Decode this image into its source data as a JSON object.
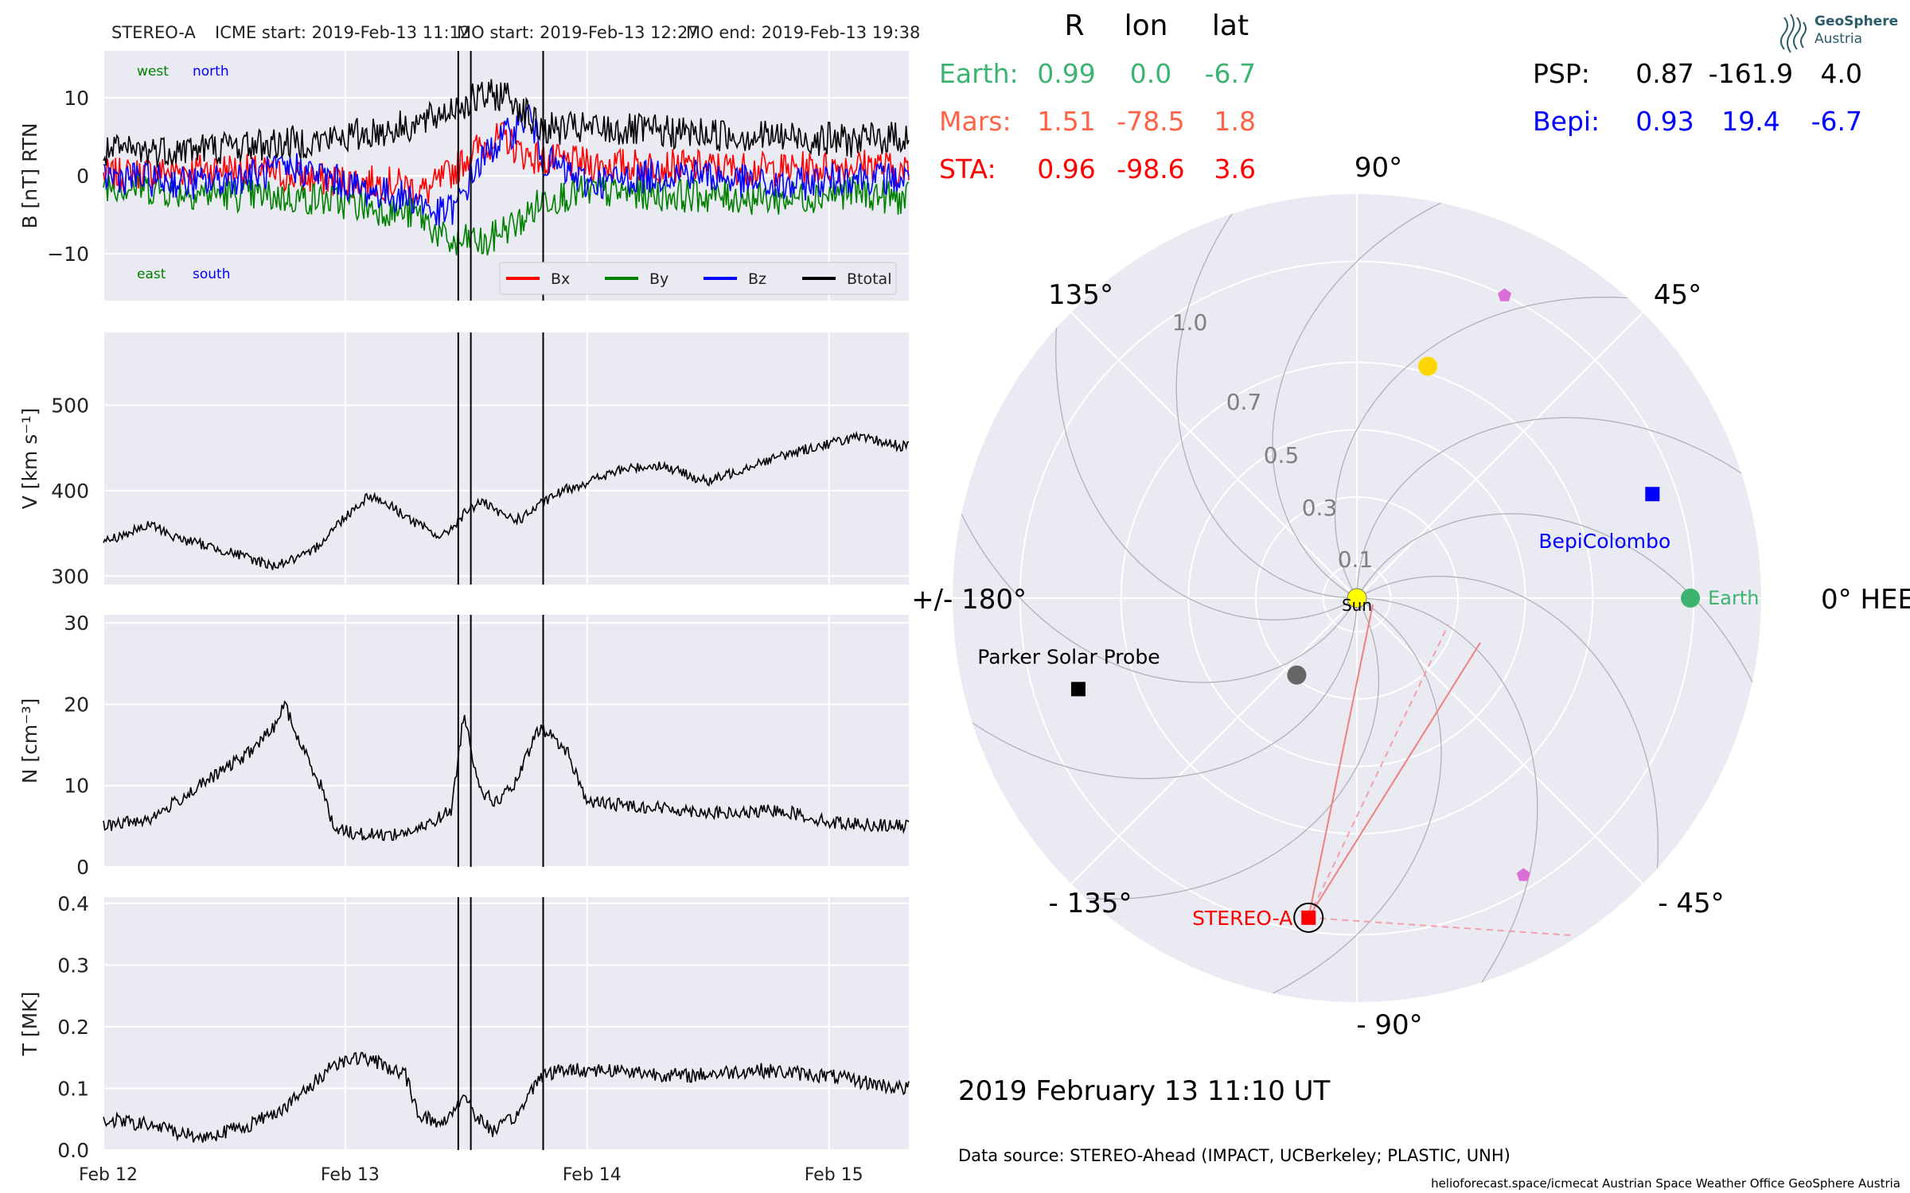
{
  "header": {
    "spacecraft": "STEREO-A",
    "icme_start": "ICME start: 2019-Feb-13 11:12",
    "mo_start": "MO start: 2019-Feb-13 12:27",
    "mo_end": "MO end: 2019-Feb-13 19:38"
  },
  "positions_table": {
    "col_r": "R",
    "col_lon": "lon",
    "col_lat": "lat",
    "rows_left": [
      {
        "label": "Earth:",
        "r": "0.99",
        "lon": "0.0",
        "lat": "-6.7",
        "color": "#3cb371"
      },
      {
        "label": "Mars:",
        "r": "1.51",
        "lon": "-78.5",
        "lat": "1.8",
        "color": "#ff6347"
      },
      {
        "label": "STA:",
        "r": "0.96",
        "lon": "-98.6",
        "lat": "3.6",
        "color": "#ff0000"
      }
    ],
    "rows_right": [
      {
        "label": "PSP:",
        "r": "0.87",
        "lon": "-161.9",
        "lat": "4.0",
        "color": "#000000"
      },
      {
        "label": "Bepi:",
        "r": "0.93",
        "lon": "19.4",
        "lat": "-6.7",
        "color": "#0000ff"
      }
    ]
  },
  "logo": {
    "line1": "GeoSphere",
    "line2": "Austria"
  },
  "date_label": "2019 February 13  11:10 UT",
  "data_source": "Data source: STEREO-Ahead (IMPACT, UCBerkeley; PLASTIC, UNH)",
  "footer": "helioforecast.space/icmecat   Austrian Space Weather Office   GeoSphere Austria",
  "chart_data": [
    {
      "type": "line",
      "panel": "B",
      "ylabel": "B [nT] RTN",
      "ylim": [
        -16,
        16
      ],
      "yticks": [
        -10,
        0,
        10
      ],
      "ytick_labels": [
        "−10",
        "0",
        "10"
      ],
      "annotations": {
        "top_left_1": "west",
        "top_left_2": "north",
        "bottom_left_1": "east",
        "bottom_left_2": "south"
      },
      "legend": {
        "position": "lower-right"
      },
      "series": [
        {
          "name": "Bx",
          "color": "#ff0000",
          "points": [
            [
              0,
              0
            ],
            [
              0.5,
              1
            ],
            [
              0.9,
              -0.5
            ],
            [
              1.2,
              -1
            ],
            [
              1.34,
              -2
            ],
            [
              1.46,
              1
            ],
            [
              1.52,
              3
            ],
            [
              1.58,
              4
            ],
            [
              1.66,
              5
            ],
            [
              1.72,
              3
            ],
            [
              1.82,
              2
            ],
            [
              2.0,
              1.5
            ],
            [
              2.4,
              1.2
            ],
            [
              2.8,
              0.8
            ],
            [
              3.2,
              1.5
            ],
            [
              3.3,
              0.5
            ]
          ]
        },
        {
          "name": "By",
          "color": "#008000",
          "points": [
            [
              0,
              -1
            ],
            [
              0.3,
              -2
            ],
            [
              0.6,
              -2.5
            ],
            [
              0.9,
              -3
            ],
            [
              1.1,
              -4
            ],
            [
              1.3,
              -5
            ],
            [
              1.34,
              -6
            ],
            [
              1.4,
              -8
            ],
            [
              1.46,
              -9
            ],
            [
              1.52,
              -8
            ],
            [
              1.58,
              -9
            ],
            [
              1.64,
              -7
            ],
            [
              1.72,
              -6
            ],
            [
              1.82,
              -3
            ],
            [
              2.0,
              -2
            ],
            [
              2.4,
              -2.5
            ],
            [
              2.8,
              -3
            ],
            [
              3.1,
              -2
            ],
            [
              3.3,
              -3
            ]
          ]
        },
        {
          "name": "Bz",
          "color": "#0000ff",
          "points": [
            [
              0,
              0
            ],
            [
              0.4,
              -1
            ],
            [
              0.8,
              1
            ],
            [
              1.1,
              -2
            ],
            [
              1.3,
              -3
            ],
            [
              1.38,
              -5
            ],
            [
              1.46,
              -4
            ],
            [
              1.54,
              1
            ],
            [
              1.62,
              4
            ],
            [
              1.7,
              6
            ],
            [
              1.76,
              8
            ],
            [
              1.82,
              2
            ],
            [
              2.0,
              -1
            ],
            [
              2.4,
              0.5
            ],
            [
              2.8,
              -1.5
            ],
            [
              3.1,
              0
            ],
            [
              3.3,
              -0.5
            ]
          ]
        },
        {
          "name": "Btotal",
          "color": "#000000",
          "points": [
            [
              0,
              3
            ],
            [
              0.4,
              3.5
            ],
            [
              0.9,
              4.5
            ],
            [
              1.2,
              6
            ],
            [
              1.34,
              7
            ],
            [
              1.46,
              9
            ],
            [
              1.56,
              10
            ],
            [
              1.66,
              10.5
            ],
            [
              1.72,
              9
            ],
            [
              1.8,
              6
            ],
            [
              2.0,
              6
            ],
            [
              2.4,
              5.5
            ],
            [
              2.8,
              5
            ],
            [
              3.1,
              4.5
            ],
            [
              3.3,
              5
            ]
          ]
        }
      ]
    },
    {
      "type": "line",
      "panel": "V",
      "ylabel": "V [km s⁻¹]",
      "ylim": [
        290,
        585
      ],
      "yticks": [
        300,
        400,
        500
      ],
      "series": [
        {
          "name": "V",
          "color": "#000000",
          "points": [
            [
              0,
              340
            ],
            [
              0.2,
              360
            ],
            [
              0.3,
              345
            ],
            [
              0.5,
              330
            ],
            [
              0.7,
              312
            ],
            [
              0.85,
              325
            ],
            [
              1.0,
              370
            ],
            [
              1.1,
              395
            ],
            [
              1.2,
              380
            ],
            [
              1.3,
              360
            ],
            [
              1.4,
              345
            ],
            [
              1.5,
              375
            ],
            [
              1.56,
              388
            ],
            [
              1.64,
              372
            ],
            [
              1.72,
              366
            ],
            [
              1.82,
              386
            ],
            [
              1.9,
              400
            ],
            [
              2.0,
              410
            ],
            [
              2.15,
              425
            ],
            [
              2.3,
              430
            ],
            [
              2.5,
              410
            ],
            [
              2.7,
              432
            ],
            [
              2.9,
              448
            ],
            [
              3.1,
              462
            ],
            [
              3.2,
              458
            ],
            [
              3.3,
              452
            ]
          ]
        }
      ]
    },
    {
      "type": "line",
      "panel": "N",
      "ylabel": "N [cm⁻³]",
      "ylim": [
        0,
        31
      ],
      "yticks": [
        0,
        10,
        20,
        30
      ],
      "series": [
        {
          "name": "N",
          "color": "#000000",
          "points": [
            [
              0,
              5
            ],
            [
              0.2,
              6
            ],
            [
              0.4,
              10
            ],
            [
              0.6,
              14
            ],
            [
              0.7,
              17
            ],
            [
              0.75,
              20
            ],
            [
              0.8,
              16
            ],
            [
              0.9,
              10
            ],
            [
              0.95,
              5
            ],
            [
              1.05,
              4
            ],
            [
              1.2,
              4
            ],
            [
              1.3,
              4.5
            ],
            [
              1.44,
              7
            ],
            [
              1.49,
              19
            ],
            [
              1.53,
              13
            ],
            [
              1.57,
              9
            ],
            [
              1.62,
              8
            ],
            [
              1.7,
              10
            ],
            [
              1.8,
              17
            ],
            [
              1.86,
              16
            ],
            [
              1.92,
              14
            ],
            [
              2.0,
              8
            ],
            [
              2.2,
              7.5
            ],
            [
              2.4,
              7
            ],
            [
              2.6,
              6.5
            ],
            [
              2.8,
              7
            ],
            [
              3.0,
              5.5
            ],
            [
              3.3,
              5
            ]
          ]
        }
      ]
    },
    {
      "type": "line",
      "panel": "T",
      "ylabel": "T [MK]",
      "ylim": [
        0,
        0.41
      ],
      "yticks": [
        0.0,
        0.1,
        0.2,
        0.3,
        0.4
      ],
      "ytick_labels": [
        "0.0",
        "0.1",
        "0.2",
        "0.3",
        "0.4"
      ],
      "xticks": [
        "Feb 12",
        "Feb 13",
        "Feb 14",
        "Feb 15"
      ],
      "series": [
        {
          "name": "T",
          "color": "#000000",
          "points": [
            [
              0,
              0.05
            ],
            [
              0.2,
              0.04
            ],
            [
              0.4,
              0.02
            ],
            [
              0.6,
              0.04
            ],
            [
              0.75,
              0.07
            ],
            [
              0.85,
              0.1
            ],
            [
              0.95,
              0.14
            ],
            [
              1.05,
              0.15
            ],
            [
              1.15,
              0.14
            ],
            [
              1.25,
              0.12
            ],
            [
              1.3,
              0.06
            ],
            [
              1.4,
              0.04
            ],
            [
              1.49,
              0.09
            ],
            [
              1.55,
              0.05
            ],
            [
              1.62,
              0.03
            ],
            [
              1.72,
              0.06
            ],
            [
              1.8,
              0.12
            ],
            [
              1.9,
              0.13
            ],
            [
              2.1,
              0.13
            ],
            [
              2.4,
              0.12
            ],
            [
              2.7,
              0.13
            ],
            [
              3.0,
              0.12
            ],
            [
              3.3,
              0.1
            ]
          ]
        }
      ]
    },
    {
      "type": "scatter",
      "panel": "polar-orbit",
      "angle_labels": [
        "0° HEEQ",
        "45°",
        "90°",
        "135°",
        "+/- 180°",
        "- 135°",
        "- 90°",
        "- 45°"
      ],
      "radial_labels": [
        "0.1",
        "0.3",
        "0.5",
        "0.7",
        "1.0"
      ],
      "objects": [
        {
          "label": "Sun",
          "r": 0.0,
          "lon": 0.0,
          "color": "#ffff00",
          "shape": "circle"
        },
        {
          "label": "Earth",
          "r": 0.99,
          "lon": 0.0,
          "color": "#3cb371",
          "shape": "circle"
        },
        {
          "label": "BepiColombo",
          "r": 0.93,
          "lon": 19.4,
          "color": "#0000ff",
          "shape": "square"
        },
        {
          "label": "Parker Solar Probe",
          "r": 0.87,
          "lon": -161.9,
          "color": "#000000",
          "shape": "square"
        },
        {
          "label": "STEREO-A",
          "r": 0.96,
          "lon": -98.6,
          "color": "#ff0000",
          "shape": "square"
        },
        {
          "label": "",
          "r": 0.72,
          "lon": 73,
          "color": "#ffd700",
          "shape": "circle"
        },
        {
          "label": "",
          "r": 0.29,
          "lon": -128,
          "color": "#666666",
          "shape": "circle"
        },
        {
          "label": "",
          "r": 1.0,
          "lon": 64,
          "color": "#da70d6",
          "shape": "pentagon"
        },
        {
          "label": "",
          "r": 0.96,
          "lon": -59,
          "color": "#da70d6",
          "shape": "pentagon"
        }
      ]
    }
  ]
}
